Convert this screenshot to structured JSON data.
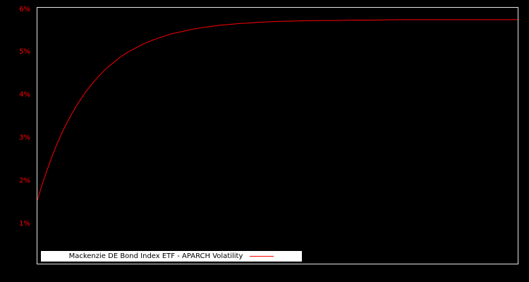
{
  "figure": {
    "background_color": "#000000",
    "axes_border_color": "#e6e6e6"
  },
  "y_axis": {
    "tick_label_color": "#ff0000",
    "tick_labels": [
      "1%",
      "2%",
      "3%",
      "4%",
      "5%",
      "6%"
    ]
  },
  "legend": {
    "background_color": "#ffffff",
    "text_color": "#000000",
    "line_sample_color": "#ff0000"
  },
  "chart_data": {
    "type": "line",
    "title": "",
    "xlabel": "",
    "ylabel": "",
    "xlim": [
      0,
      1
    ],
    "ylim": [
      0.06,
      6.06
    ],
    "yticks": [
      1,
      2,
      3,
      4,
      5,
      6
    ],
    "ytick_labels": [
      "1%",
      "2%",
      "3%",
      "4%",
      "5%",
      "6%"
    ],
    "grid": false,
    "legend_position": "lower-left",
    "background": "#000000",
    "series": [
      {
        "name": "Mackenzie DE Bond Index ETF - APARCH Volatility",
        "color": "#ff0000",
        "x": [
          0,
          0.01,
          0.02,
          0.03,
          0.04,
          0.05,
          0.06,
          0.07,
          0.08,
          0.09,
          0.1,
          0.11,
          0.12,
          0.13,
          0.14,
          0.15,
          0.16,
          0.17,
          0.18,
          0.19,
          0.2,
          0.22,
          0.24,
          0.26,
          0.28,
          0.3,
          0.32,
          0.34,
          0.36,
          0.38,
          0.4,
          0.42,
          0.44,
          0.46,
          0.48,
          0.5,
          0.54,
          0.58,
          0.62,
          0.66,
          0.7,
          0.75,
          0.8,
          0.85,
          0.9,
          0.95,
          1.0
        ],
        "y": [
          1.55,
          1.92,
          2.25,
          2.56,
          2.84,
          3.1,
          3.33,
          3.54,
          3.74,
          3.91,
          4.08,
          4.22,
          4.36,
          4.48,
          4.6,
          4.7,
          4.79,
          4.88,
          4.96,
          5.03,
          5.09,
          5.21,
          5.3,
          5.38,
          5.45,
          5.5,
          5.55,
          5.59,
          5.62,
          5.65,
          5.67,
          5.69,
          5.7,
          5.72,
          5.73,
          5.74,
          5.75,
          5.76,
          5.76,
          5.77,
          5.77,
          5.78,
          5.78,
          5.78,
          5.78,
          5.78,
          5.78
        ]
      }
    ]
  }
}
